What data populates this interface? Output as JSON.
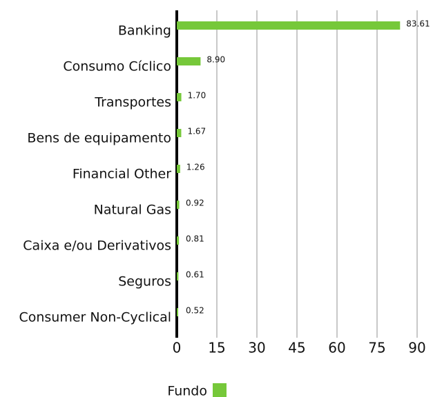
{
  "chart_data": {
    "type": "barh",
    "categories": [
      "Banking",
      "Consumo Cíclico",
      "Transportes",
      "Bens de equipamento",
      "Financial Other",
      "Natural Gas",
      "Caixa e/ou Derivativos",
      "Seguros",
      "Consumer Non-Cyclical"
    ],
    "series": [
      {
        "name": "Fundo",
        "color": "#76c83a",
        "values": [
          83.61,
          8.9,
          1.7,
          1.67,
          1.26,
          0.92,
          0.81,
          0.61,
          0.52
        ],
        "value_labels": [
          "83.61",
          "8.90",
          "1.70",
          "1.67",
          "1.26",
          "0.92",
          "0.81",
          "0.61",
          "0.52"
        ]
      }
    ],
    "xlim": [
      0,
      90
    ],
    "xticks": [
      0,
      15,
      30,
      45,
      60,
      75,
      90
    ],
    "grid": true,
    "legend": "bottom"
  }
}
